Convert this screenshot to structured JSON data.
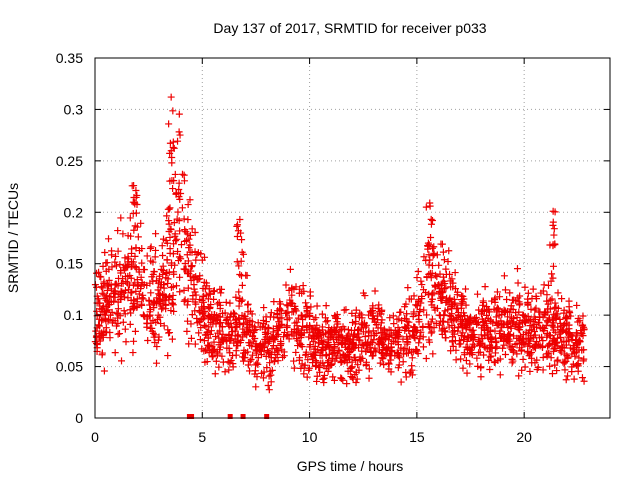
{
  "chart_data": {
    "type": "scatter",
    "title": "Day 137 of 2017, SRMTID for receiver p033",
    "xlabel": "GPS time / hours",
    "ylabel": "SRMTID / TECUs",
    "xlim": [
      0,
      24
    ],
    "ylim": [
      0,
      0.35
    ],
    "x_ticks": [
      0,
      5,
      10,
      15,
      20
    ],
    "x_tick_labels": [
      "0",
      "5",
      "10",
      "15",
      "20"
    ],
    "y_ticks": [
      0,
      0.05,
      0.1,
      0.15,
      0.2,
      0.25,
      0.3,
      0.35
    ],
    "y_tick_labels": [
      "0",
      "0.05",
      "0.1",
      "0.15",
      "0.2",
      "0.25",
      "0.3",
      "0.35"
    ],
    "grid": true,
    "marker": "+",
    "color": "#ee0000",
    "series": [
      {
        "name": "SRMTID",
        "envelope_hours": [
          0,
          0.5,
          1,
          1.5,
          2,
          2.5,
          3,
          3.5,
          4,
          4.5,
          5,
          5.5,
          6,
          6.5,
          7,
          7.5,
          8,
          8.5,
          9,
          9.5,
          10,
          10.5,
          11,
          11.5,
          12,
          12.5,
          13,
          13.5,
          14,
          14.5,
          15,
          15.5,
          16,
          16.5,
          17,
          17.5,
          18,
          18.5,
          19,
          19.5,
          20,
          20.5,
          21,
          21.5,
          22,
          22.5,
          22.8
        ],
        "envelope_mean": [
          0.09,
          0.11,
          0.12,
          0.13,
          0.14,
          0.12,
          0.11,
          0.15,
          0.2,
          0.13,
          0.11,
          0.09,
          0.08,
          0.08,
          0.09,
          0.07,
          0.07,
          0.08,
          0.1,
          0.09,
          0.08,
          0.07,
          0.07,
          0.07,
          0.07,
          0.08,
          0.08,
          0.08,
          0.07,
          0.08,
          0.09,
          0.12,
          0.13,
          0.11,
          0.09,
          0.08,
          0.09,
          0.08,
          0.09,
          0.09,
          0.09,
          0.08,
          0.09,
          0.08,
          0.08,
          0.07,
          0.07
        ],
        "peaks": [
          {
            "x": 1.8,
            "y": 0.226
          },
          {
            "x": 3.55,
            "y": 0.312
          },
          {
            "x": 6.75,
            "y": 0.193
          },
          {
            "x": 15.6,
            "y": 0.209
          },
          {
            "x": 21.35,
            "y": 0.201
          }
        ]
      }
    ],
    "zero_flags_hours": [
      4.4,
      4.5,
      6.3,
      6.9,
      8.0
    ]
  }
}
